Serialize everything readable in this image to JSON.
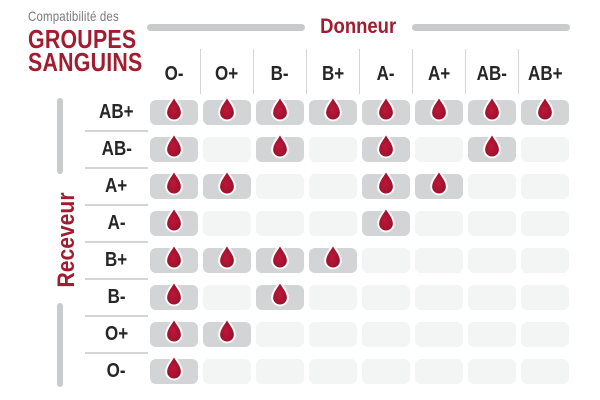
{
  "title": {
    "subtitle": "Compatibilité des",
    "line1": "GROUPES",
    "line2": "SANGUINS"
  },
  "donor_axis_label": "Donneur",
  "recipient_axis_label": "Receveur",
  "chart_data": {
    "type": "heatmap",
    "title": "Compatibilité des GROUPES SANGUINS",
    "x_axis_label": "Donneur",
    "y_axis_label": "Receveur",
    "columns": [
      "O-",
      "O+",
      "B-",
      "B+",
      "A-",
      "A+",
      "AB-",
      "AB+"
    ],
    "rows": [
      "AB+",
      "AB-",
      "A+",
      "A-",
      "B+",
      "B-",
      "O+",
      "O-"
    ],
    "cell_marker_icon": "blood-drop-icon",
    "matrix": [
      [
        1,
        1,
        1,
        1,
        1,
        1,
        1,
        1
      ],
      [
        1,
        0,
        1,
        0,
        1,
        0,
        1,
        0
      ],
      [
        1,
        1,
        0,
        0,
        1,
        1,
        0,
        0
      ],
      [
        1,
        0,
        0,
        0,
        1,
        0,
        0,
        0
      ],
      [
        1,
        1,
        1,
        1,
        0,
        0,
        0,
        0
      ],
      [
        1,
        0,
        1,
        0,
        0,
        0,
        0,
        0
      ],
      [
        1,
        1,
        0,
        0,
        0,
        0,
        0,
        0
      ],
      [
        1,
        0,
        0,
        0,
        0,
        0,
        0,
        0
      ]
    ]
  },
  "colors": {
    "brand_red": "#a21c30",
    "heading_gray": "#7b7b7b",
    "label_dark": "#262626",
    "cell_active": "#d3d4d5",
    "cell_empty": "#f3f4f4",
    "bar_gray": "#c9cacb",
    "divider_gray": "#d3d5d6",
    "drop_dark": "#8e1126",
    "drop_light": "#bf163a",
    "drop_outline": "#ffffff",
    "background": "#ffffff"
  }
}
